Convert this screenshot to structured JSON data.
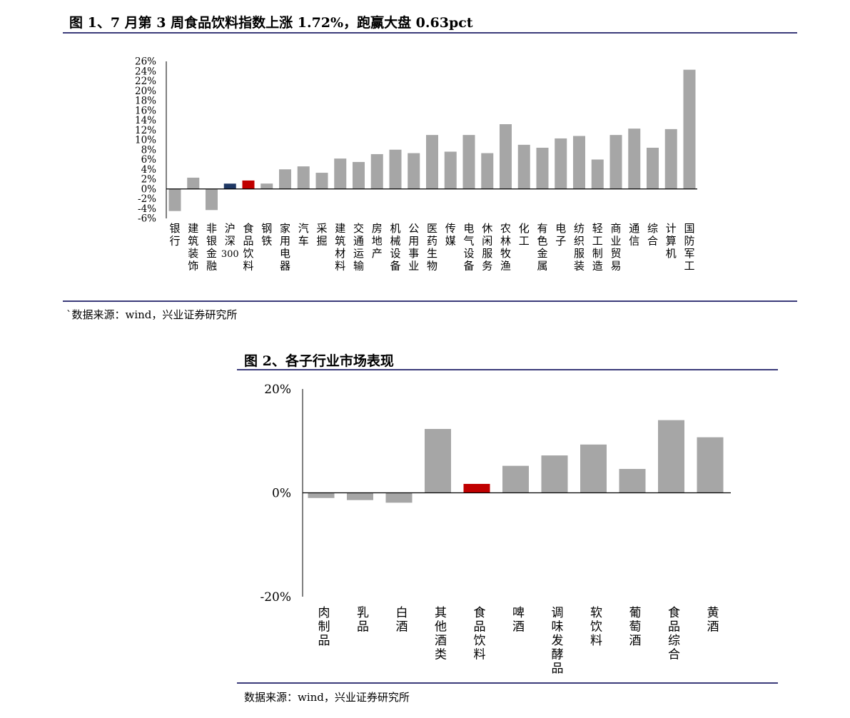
{
  "figure1": {
    "title": "图 1、7 月第 3 周食品饮料指数上涨 1.72%，跑赢大盘 0.63pct",
    "source": "`数据来源：wind，兴业证券研究所"
  },
  "figure2": {
    "title": "图 2、各子行业市场表现",
    "source": "数据来源：wind，兴业证券研究所"
  },
  "colors": {
    "bar": "#a6a6a6",
    "highlight_red": "#c00000",
    "highlight_navy": "#1f3864",
    "rule": "#3b3b7a"
  },
  "chart_data": [
    {
      "type": "bar",
      "categories": [
        "银行",
        "建筑装饰",
        "非银金融",
        "沪深300",
        "食品饮料",
        "钢铁",
        "家用电器",
        "汽车",
        "采掘",
        "建筑材料",
        "交通运输",
        "房地产",
        "机械设备",
        "公用事业",
        "医药生物",
        "传媒",
        "电气设备",
        "休闲服务",
        "农林牧渔",
        "化工",
        "有色金属",
        "电子",
        "纺织服装",
        "轻工制造",
        "商业贸易",
        "通信",
        "综合",
        "计算机",
        "国防军工"
      ],
      "values": [
        -4.5,
        2.3,
        -4.3,
        1.09,
        1.72,
        1.1,
        4.0,
        4.6,
        3.3,
        6.2,
        5.5,
        7.1,
        8.0,
        7.3,
        11.0,
        7.6,
        11.0,
        7.3,
        13.2,
        9.0,
        8.4,
        10.3,
        10.8,
        6.0,
        11.0,
        12.3,
        8.4,
        12.2,
        24.3
      ],
      "highlight": {
        "沪深300": "navy",
        "食品饮料": "red"
      },
      "y_ticks": [
        "26%",
        "24%",
        "22%",
        "20%",
        "18%",
        "16%",
        "14%",
        "12%",
        "10%",
        "8%",
        "6%",
        "4%",
        "2%",
        "0%",
        "-2%",
        "-4%",
        "-6%"
      ],
      "ylim": [
        -6,
        26
      ],
      "xlabel": "",
      "ylabel": ""
    },
    {
      "type": "bar",
      "categories": [
        "肉制品",
        "乳品",
        "白酒",
        "其他酒类",
        "食品饮料",
        "啤酒",
        "调味发酵品",
        "软饮料",
        "葡萄酒",
        "食品综合",
        "黄酒"
      ],
      "values": [
        -1.0,
        -1.4,
        -1.9,
        12.3,
        1.72,
        5.2,
        7.2,
        9.3,
        4.6,
        14.0,
        10.7
      ],
      "highlight": {
        "食品饮料": "red"
      },
      "y_ticks": [
        "20%",
        "0%",
        "-20%"
      ],
      "ylim": [
        -20,
        20
      ],
      "xlabel": "",
      "ylabel": ""
    }
  ]
}
